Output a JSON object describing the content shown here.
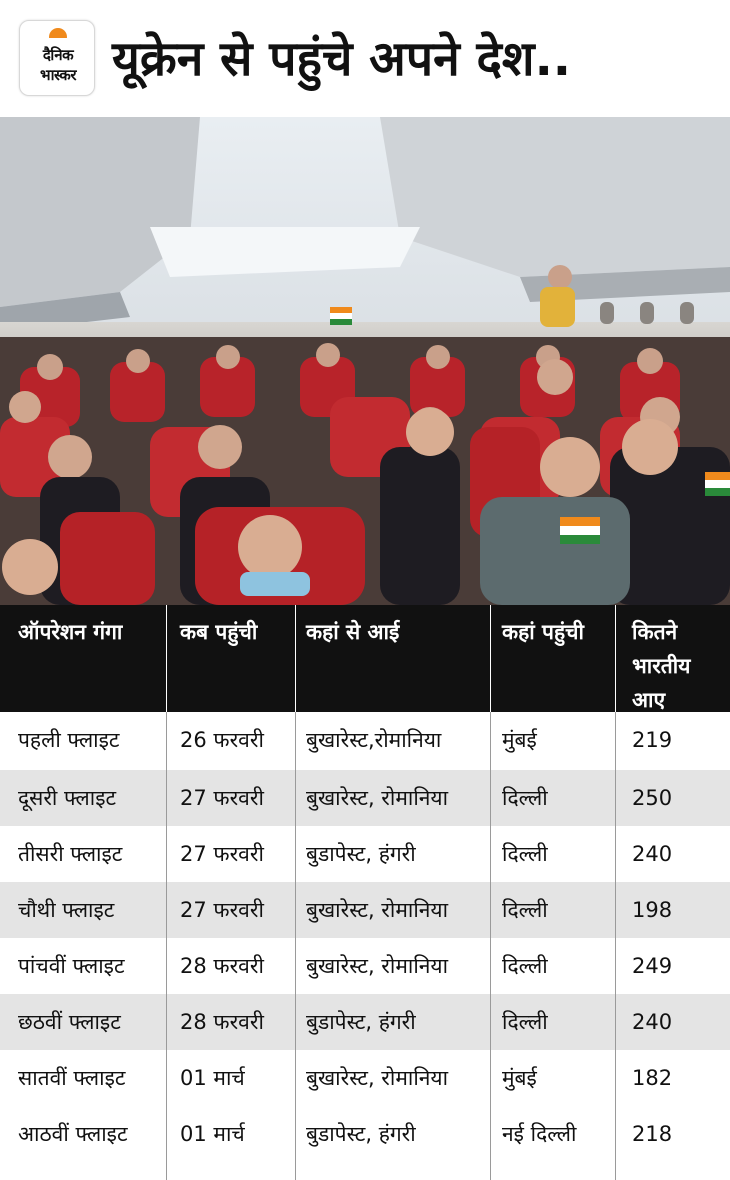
{
  "header": {
    "logo_line1": "दैनिक",
    "logo_line2": "भास्कर",
    "headline": "यूक्रेन से पहुंचे अपने देश.."
  },
  "photo": {
    "icon": "airplane-cabin-passengers-photo"
  },
  "table": {
    "headers": [
      "ऑपरेशन गंगा",
      "कब पहुंची",
      "कहां से आई",
      "कहां पहुंची",
      "कितने भारतीय आए"
    ],
    "header_last_lines": [
      "कितने",
      "भारतीय",
      "आए"
    ],
    "rows": [
      [
        "पहली फ्लाइट",
        "26 फरवरी",
        "बुखारेस्ट,रोमानिया",
        "मुंबई",
        "219"
      ],
      [
        "दूसरी फ्लाइट",
        "27 फरवरी",
        "बुखारेस्ट, रोमानिया",
        "दिल्ली",
        "250"
      ],
      [
        "तीसरी फ्लाइट",
        "27 फरवरी",
        "बुडापेस्ट, हंगरी",
        "दिल्ली",
        "240"
      ],
      [
        "चौथी फ्लाइट",
        "27 फरवरी",
        "बुखारेस्ट, रोमानिया",
        "दिल्ली",
        "198"
      ],
      [
        "पांचवीं फ्लाइट",
        "28 फरवरी",
        "बुखारेस्ट, रोमानिया",
        "दिल्ली",
        "249"
      ],
      [
        "छठवीं  फ्लाइट",
        "28 फरवरी",
        "बुडापेस्ट, हंगरी",
        "दिल्ली",
        "240"
      ],
      [
        "सातवीं फ्लाइट",
        "01 मार्च",
        "बुखारेस्ट, रोमानिया",
        "मुंबई",
        "182"
      ],
      [
        "आठवीं फ्लाइट",
        "01 मार्च",
        "बुडापेस्ट, हंगरी",
        "नई दिल्ली",
        "218"
      ]
    ]
  },
  "colors": {
    "header_bg": "#111111",
    "alt_row": "#e4e4e4",
    "logo_sun": "#f08a1c",
    "seat_red": "#b8232a"
  }
}
